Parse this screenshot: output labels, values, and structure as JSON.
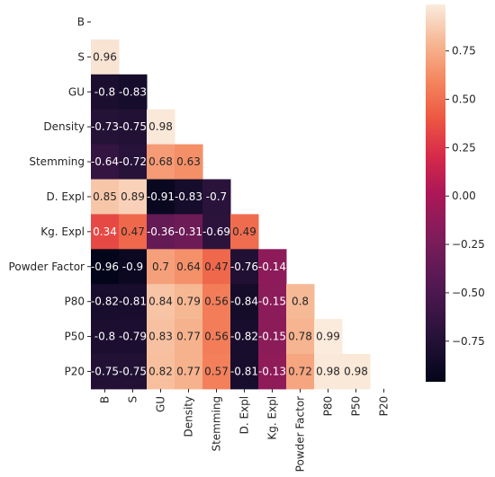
{
  "chart_data": {
    "type": "heatmap",
    "variant": "lower-triangle correlation matrix",
    "labels": [
      "B",
      "S",
      "GU",
      "Density",
      "Stemming",
      "D. Expl",
      "Kg. Expl",
      "Powder Factor",
      "P80",
      "P50",
      "P20"
    ],
    "matrix": [
      [],
      [
        0.96
      ],
      [
        -0.8,
        -0.83
      ],
      [
        -0.73,
        -0.75,
        0.98
      ],
      [
        -0.64,
        -0.72,
        0.68,
        0.63
      ],
      [
        0.85,
        0.89,
        -0.91,
        -0.83,
        -0.7
      ],
      [
        0.34,
        0.47,
        -0.36,
        -0.31,
        -0.69,
        0.49
      ],
      [
        -0.96,
        -0.9,
        0.7,
        0.64,
        0.47,
        -0.76,
        -0.14
      ],
      [
        -0.82,
        -0.81,
        0.84,
        0.79,
        0.56,
        -0.84,
        -0.15,
        0.8
      ],
      [
        -0.8,
        -0.79,
        0.83,
        0.77,
        0.56,
        -0.82,
        -0.15,
        0.78,
        0.99
      ],
      [
        -0.75,
        -0.75,
        0.82,
        0.77,
        0.57,
        -0.81,
        -0.13,
        0.72,
        0.98,
        0.98
      ]
    ],
    "colorscale": "rocket",
    "value_range": [
      -0.96,
      0.99
    ],
    "colorbar": {
      "ticks": [
        -0.75,
        -0.5,
        -0.25,
        0.0,
        0.25,
        0.5,
        0.75
      ],
      "tick_labels": [
        "−0.75",
        "−0.50",
        "−0.25",
        "0.00",
        "0.25",
        "0.50",
        "0.75"
      ]
    }
  }
}
